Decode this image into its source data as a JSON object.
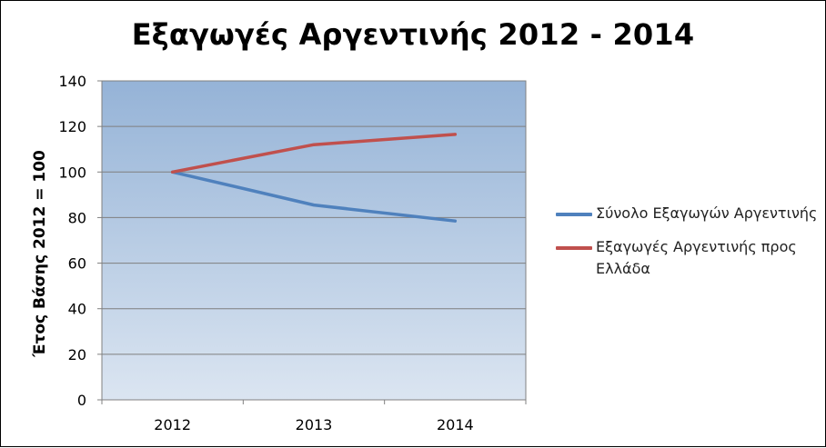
{
  "chart_data": {
    "type": "line",
    "title": "Εξαγωγές Αργεντινής 2012 - 2014",
    "ylabel": "Έτος Βάσης 2012 = 100",
    "xlabel": "",
    "categories": [
      "2012",
      "2013",
      "2014"
    ],
    "ylim": [
      0,
      140
    ],
    "yticks": [
      "0",
      "20",
      "40",
      "60",
      "80",
      "100",
      "120",
      "140"
    ],
    "grid": true,
    "legend_position": "right",
    "series": [
      {
        "name": "Σύνολο Εξαγωγών Αργεντινής",
        "values": [
          100,
          85.5,
          78.5
        ],
        "color": "#4F81BD"
      },
      {
        "name": "Εξαγωγές Αργεντινής προς Ελλάδα",
        "values": [
          100,
          112,
          116.5
        ],
        "color": "#C0504D"
      }
    ]
  }
}
